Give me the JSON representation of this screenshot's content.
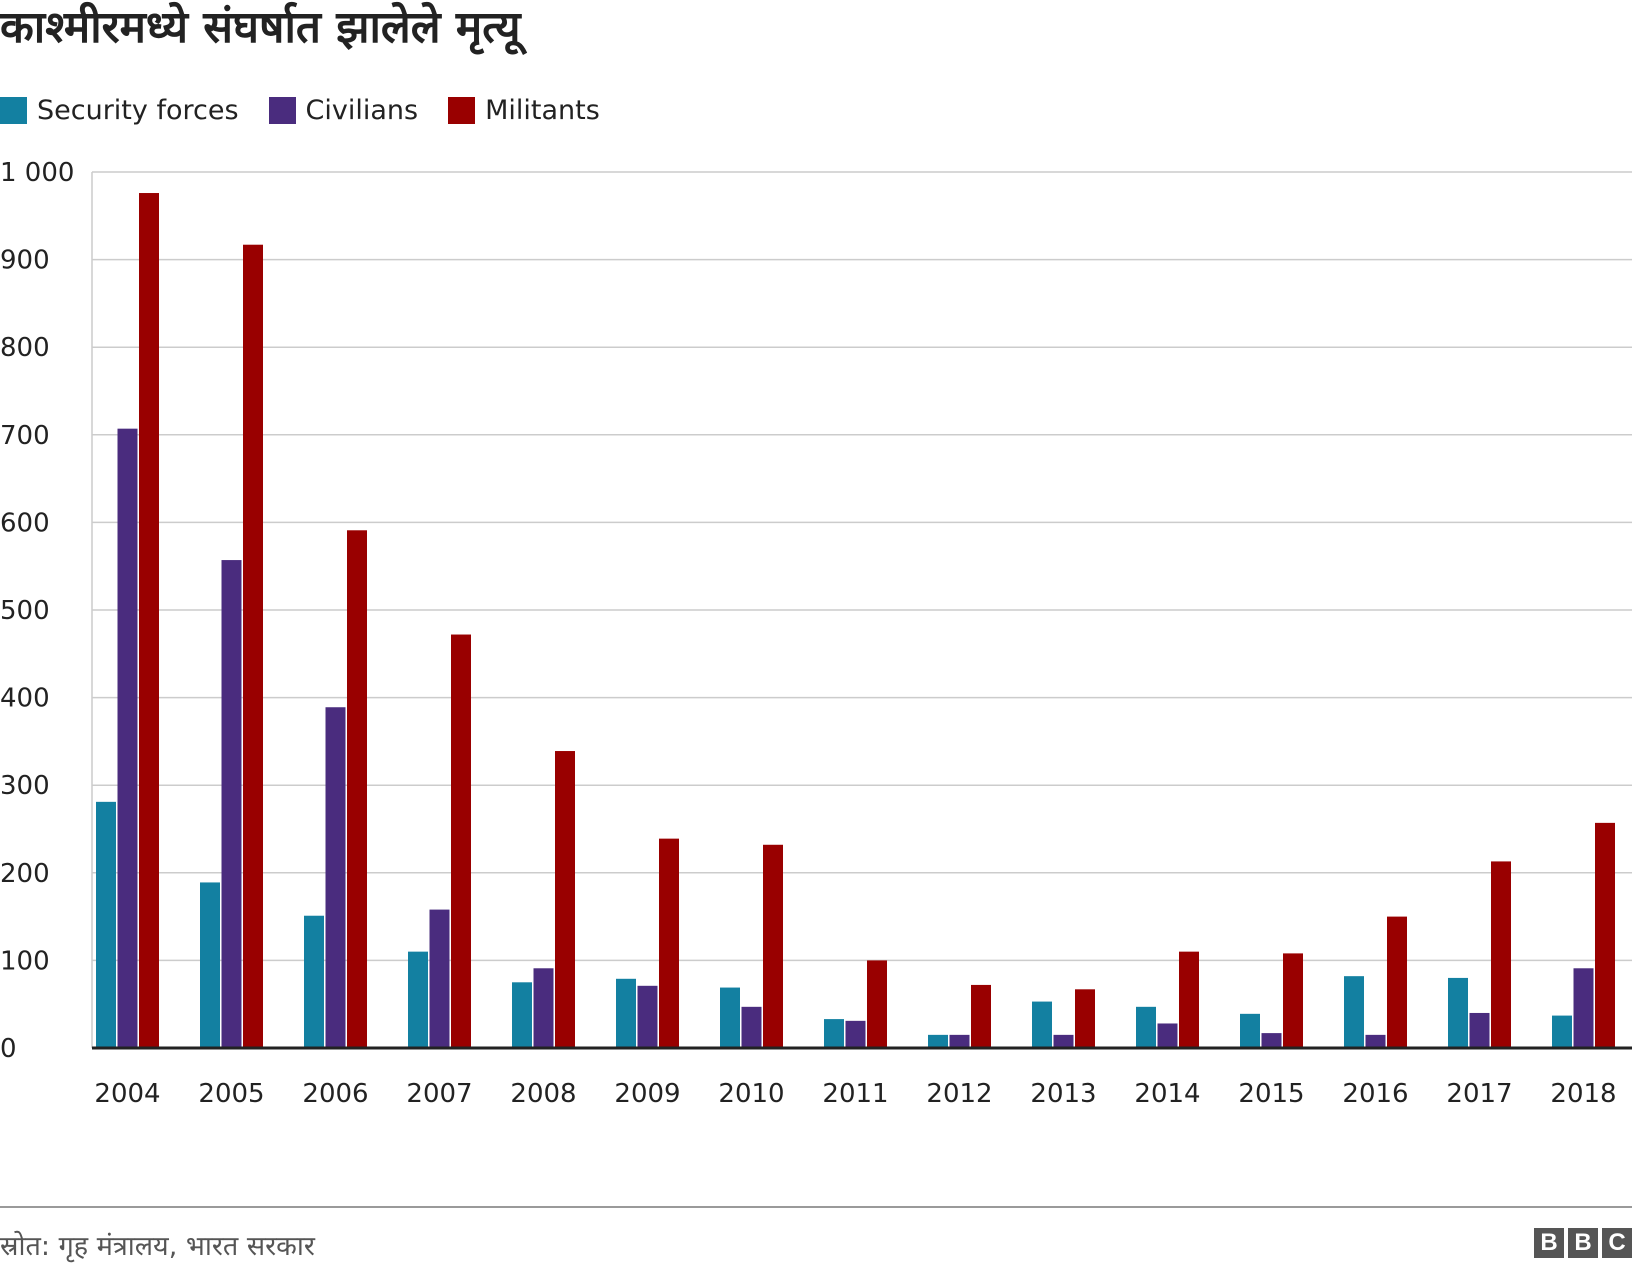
{
  "chart_data": {
    "type": "bar",
    "title": "काश्मीरमध्ये संघर्षात झालेले मृत्यू",
    "xlabel": "",
    "ylabel": "",
    "ylim": [
      0,
      1000
    ],
    "yticks": [
      0,
      100,
      200,
      300,
      400,
      500,
      600,
      700,
      800,
      900,
      1000
    ],
    "ytick_labels": [
      "0",
      "100",
      "200",
      "300",
      "400",
      "500",
      "600",
      "700",
      "800",
      "900",
      "1 000"
    ],
    "categories": [
      "2004",
      "2005",
      "2006",
      "2007",
      "2008",
      "2009",
      "2010",
      "2011",
      "2012",
      "2013",
      "2014",
      "2015",
      "2016",
      "2017",
      "2018"
    ],
    "series": [
      {
        "name": "Security forces",
        "color": "#1380a1",
        "values": [
          281,
          189,
          151,
          110,
          75,
          79,
          69,
          33,
          15,
          53,
          47,
          39,
          82,
          80,
          37
        ]
      },
      {
        "name": "Civilians",
        "color": "#4a2c7e",
        "values": [
          707,
          557,
          389,
          158,
          91,
          71,
          47,
          31,
          15,
          15,
          28,
          17,
          15,
          40,
          91
        ]
      },
      {
        "name": "Militants",
        "color": "#990000",
        "values": [
          976,
          917,
          591,
          472,
          339,
          239,
          232,
          100,
          72,
          67,
          110,
          108,
          150,
          213,
          257
        ]
      }
    ],
    "grid": true,
    "legend_position": "top-left"
  },
  "footer": {
    "source": "स्रोत: गृह मंत्रालय, भारत सरकार",
    "logo": [
      "B",
      "B",
      "C"
    ]
  }
}
